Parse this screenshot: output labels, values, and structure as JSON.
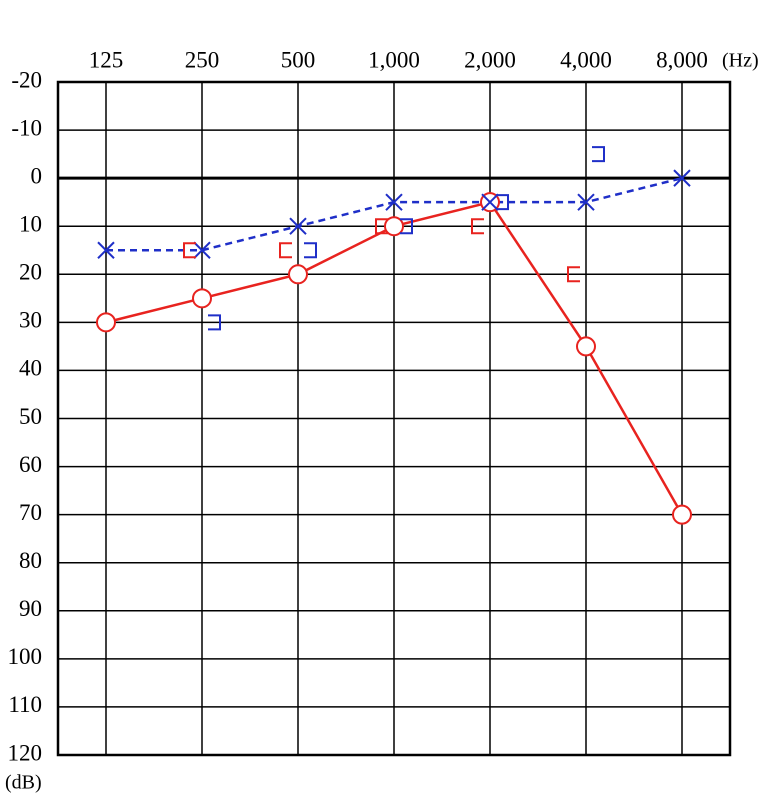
{
  "chart_data": {
    "type": "audiogram",
    "categories": [
      "125",
      "250",
      "500",
      "1,000",
      "2,000",
      "4,000",
      "8,000"
    ],
    "x_unit": "(Hz)",
    "y_unit": "(dB)",
    "ylim": [
      -20,
      120
    ],
    "y_inverted": true,
    "yticks": [
      -20,
      -10,
      0,
      10,
      20,
      30,
      40,
      50,
      60,
      70,
      80,
      90,
      100,
      110,
      120
    ],
    "grid": true,
    "zero_line": true,
    "series": [
      {
        "color": "#e8231f",
        "marker": "circle",
        "line": "solid",
        "values": [
          30,
          25,
          20,
          10,
          5,
          35,
          70
        ]
      },
      {
        "color": "#1f2fc8",
        "marker": "x",
        "line": "dashed",
        "values": [
          15,
          15,
          10,
          5,
          5,
          5,
          0
        ]
      },
      {
        "color": "#e8231f",
        "marker": "left-bracket",
        "line": "none",
        "values": [
          null,
          15,
          15,
          10,
          10,
          20,
          null
        ]
      },
      {
        "color": "#1f2fc8",
        "marker": "right-bracket",
        "line": "none",
        "values": [
          null,
          30,
          15,
          10,
          5,
          -5,
          null
        ]
      }
    ]
  }
}
